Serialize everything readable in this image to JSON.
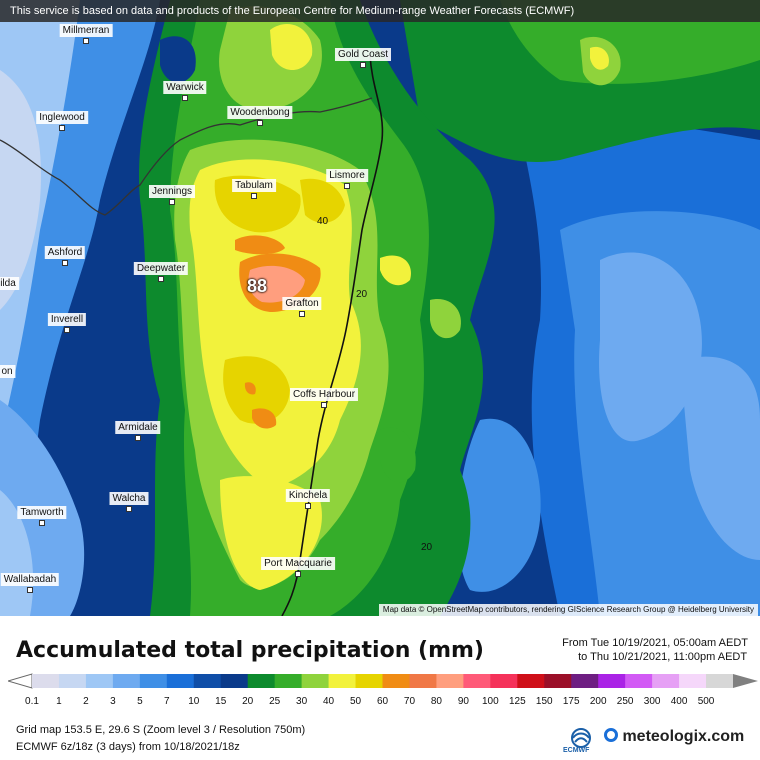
{
  "banner": "This service is based on data and products of the European Centre for Medium-range Weather Forecasts (ECMWF)",
  "attribution": "Map data © OpenStreetMap contributors, rendering GIScience Research Group @ Heidelberg University",
  "cities": [
    {
      "name": "Millmerran"
    },
    {
      "name": "Gold Coast"
    },
    {
      "name": "Warwick"
    },
    {
      "name": "Woodenbong"
    },
    {
      "name": "Inglewood"
    },
    {
      "name": "Tabulam"
    },
    {
      "name": "Lismore"
    },
    {
      "name": "Jennings"
    },
    {
      "name": "Ashford"
    },
    {
      "name": "Deepwater"
    },
    {
      "name": "Grafton"
    },
    {
      "name": "Inverell"
    },
    {
      "name": "Coffs Harbour"
    },
    {
      "name": "Armidale"
    },
    {
      "name": "Walcha"
    },
    {
      "name": "Kinchela"
    },
    {
      "name": "Tamworth"
    },
    {
      "name": "Port Macquarie"
    },
    {
      "name": "Wallabadah"
    },
    {
      "name": "ilda"
    },
    {
      "name": "on"
    }
  ],
  "contour_labels": [
    "40",
    "20",
    "20"
  ],
  "peak_value": "88",
  "title": "Accumulated total precipitation (mm)",
  "period": {
    "from": "From Tue 10/19/2021, 05:00am AEDT",
    "to": "to Thu 10/21/2021, 11:00pm AEDT"
  },
  "legend": {
    "ticks": [
      "0.1",
      "1",
      "2",
      "3",
      "5",
      "7",
      "10",
      "15",
      "20",
      "25",
      "30",
      "40",
      "50",
      "60",
      "70",
      "80",
      "90",
      "100",
      "125",
      "150",
      "175",
      "200",
      "250",
      "300",
      "400",
      "500"
    ],
    "colors": [
      "#dcdcec",
      "#c6d7f2",
      "#9ec7f5",
      "#6eaaf0",
      "#3f8fe6",
      "#1a6fd8",
      "#0f4ea8",
      "#0a3a8a",
      "#0d8a2d",
      "#35ad2a",
      "#8fd33c",
      "#f2f23c",
      "#e6d400",
      "#f08c14",
      "#f07846",
      "#ff9e7e",
      "#ff5a78",
      "#f5325a",
      "#cf0f19",
      "#9b0f28",
      "#6e1e82",
      "#aa23e6",
      "#d25af5",
      "#e6a0f5",
      "#f5d7fa",
      "#d7d7d7"
    ]
  },
  "meta": {
    "grid": "Grid map 153.5 E, 29.6 S (Zoom level 3 / Resolution 750m)",
    "model": "ECMWF 6z/18z (3 days) from  10/18/2021/18z",
    "ecmwf_logo_text": "ECMWF",
    "brand": "meteologix.com"
  }
}
